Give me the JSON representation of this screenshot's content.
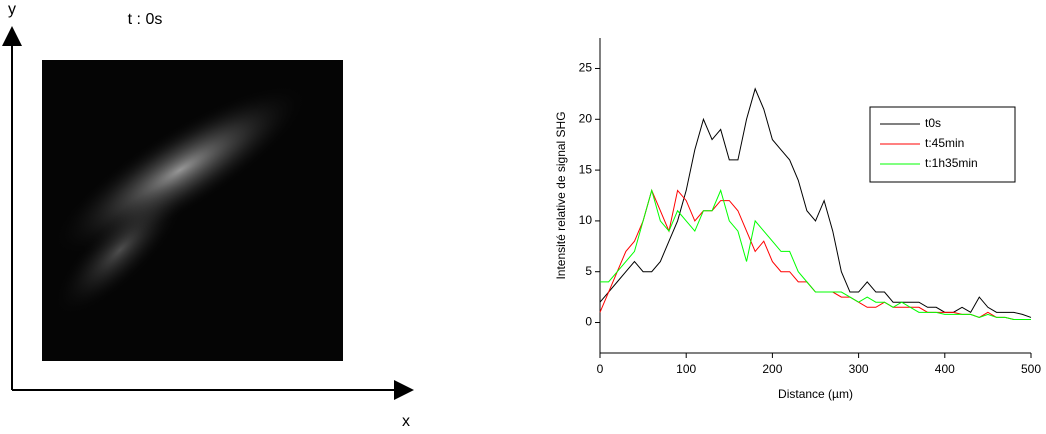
{
  "image_panel": {
    "title": "t : 0s",
    "x_label": "x",
    "y_label": "y"
  },
  "chart_data": {
    "type": "line",
    "x_label": "Distance (µm)",
    "y_label": "Intensité relative de signal SHG",
    "x": [
      0,
      10,
      20,
      30,
      40,
      50,
      60,
      70,
      80,
      90,
      100,
      110,
      120,
      130,
      140,
      150,
      160,
      170,
      180,
      190,
      200,
      210,
      220,
      230,
      240,
      250,
      260,
      270,
      280,
      290,
      300,
      310,
      320,
      330,
      340,
      350,
      360,
      370,
      380,
      390,
      400,
      410,
      420,
      430,
      440,
      450,
      460,
      470,
      480,
      490,
      500
    ],
    "series": [
      {
        "name": "t0s",
        "color": "#000000",
        "values": [
          2,
          3,
          4,
          5,
          6,
          5,
          5,
          6,
          8,
          10,
          13,
          17,
          20,
          18,
          19,
          16,
          16,
          20,
          23,
          21,
          18,
          17,
          16,
          14,
          11,
          10,
          12,
          9,
          5,
          3,
          3,
          4,
          3,
          3,
          2,
          2,
          2,
          2,
          1.5,
          1.5,
          1,
          1,
          1.5,
          1,
          2.5,
          1.5,
          1,
          1,
          1,
          0.8,
          0.5
        ]
      },
      {
        "name": "t:45min",
        "color": "#ff0000",
        "values": [
          1,
          3,
          5,
          7,
          8,
          10,
          13,
          11,
          9,
          13,
          12,
          10,
          11,
          11,
          12,
          12,
          11,
          9,
          7,
          8,
          6,
          5,
          5,
          4,
          4,
          3,
          3,
          3,
          2.5,
          2.5,
          2,
          1.5,
          1.5,
          2,
          1.5,
          1.5,
          1.5,
          1.5,
          1,
          1,
          1,
          1,
          0.8,
          0.8,
          0.5,
          1,
          0.5,
          0.5,
          0.3,
          0.3,
          0.3
        ]
      },
      {
        "name": "t:1h35min",
        "color": "#00ff00",
        "values": [
          4,
          4,
          5,
          6,
          7,
          10,
          13,
          10,
          9,
          11,
          10,
          9,
          11,
          11,
          13,
          10,
          9,
          6,
          10,
          9,
          8,
          7,
          7,
          5,
          4,
          3,
          3,
          3,
          3,
          2.5,
          2,
          2.5,
          2,
          2,
          1.5,
          2,
          1.5,
          1,
          1,
          1,
          0.8,
          0.8,
          0.8,
          0.8,
          0.5,
          0.8,
          0.5,
          0.5,
          0.3,
          0.3,
          0.3
        ]
      }
    ],
    "xlim": [
      0,
      500
    ],
    "xticks": [
      0,
      100,
      200,
      300,
      400,
      500
    ],
    "ylim": [
      -3,
      28
    ],
    "yticks": [
      0,
      5,
      10,
      15,
      20,
      25
    ]
  }
}
